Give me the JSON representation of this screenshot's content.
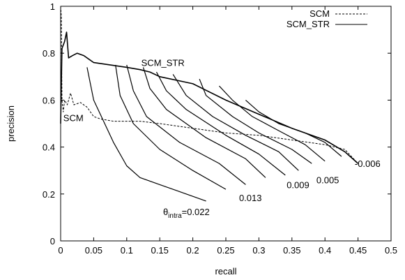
{
  "chart_data": {
    "type": "line",
    "title": "",
    "xlabel": "recall",
    "ylabel": "precision",
    "xlim": [
      0,
      0.5
    ],
    "ylim": [
      0,
      1
    ],
    "xticks": [
      "0",
      "0.05",
      "0.1",
      "0.15",
      "0.2",
      "0.25",
      "0.3",
      "0.35",
      "0.4",
      "0.45",
      "0.5"
    ],
    "yticks": [
      "0",
      "0.2",
      "0.4",
      "0.6",
      "0.8",
      "1"
    ],
    "xtick_values": [
      0,
      0.05,
      0.1,
      0.15,
      0.2,
      0.25,
      0.3,
      0.35,
      0.4,
      0.45,
      0.5
    ],
    "ytick_values": [
      0,
      0.2,
      0.4,
      0.6,
      0.8,
      1
    ],
    "grid": false,
    "legend": {
      "placement": "top-right",
      "entries": [
        {
          "label": "SCM",
          "style": "dashed"
        },
        {
          "label": "SCM_STR",
          "style": "solid"
        }
      ]
    },
    "series": [
      {
        "name": "SCM",
        "style": "dashed",
        "points": [
          [
            0,
            1.0
          ],
          [
            0.001,
            0.96
          ],
          [
            0.002,
            0.6
          ],
          [
            0.004,
            0.55
          ],
          [
            0.006,
            0.6
          ],
          [
            0.01,
            0.58
          ],
          [
            0.015,
            0.63
          ],
          [
            0.02,
            0.58
          ],
          [
            0.03,
            0.59
          ],
          [
            0.04,
            0.57
          ],
          [
            0.05,
            0.53
          ],
          [
            0.06,
            0.52
          ],
          [
            0.08,
            0.51
          ],
          [
            0.1,
            0.51
          ],
          [
            0.12,
            0.51
          ],
          [
            0.15,
            0.5
          ],
          [
            0.2,
            0.48
          ],
          [
            0.25,
            0.46
          ],
          [
            0.3,
            0.45
          ],
          [
            0.35,
            0.43
          ],
          [
            0.4,
            0.41
          ],
          [
            0.43,
            0.39
          ],
          [
            0.45,
            0.33
          ]
        ]
      },
      {
        "name": "SCM_STR",
        "style": "solid",
        "points": [
          [
            0,
            0.5
          ],
          [
            0.002,
            0.82
          ],
          [
            0.006,
            0.85
          ],
          [
            0.009,
            0.89
          ],
          [
            0.012,
            0.78
          ],
          [
            0.018,
            0.79
          ],
          [
            0.025,
            0.8
          ],
          [
            0.035,
            0.79
          ],
          [
            0.05,
            0.76
          ],
          [
            0.1,
            0.74
          ],
          [
            0.12,
            0.73
          ],
          [
            0.135,
            0.72
          ],
          [
            0.15,
            0.7
          ],
          [
            0.2,
            0.67
          ],
          [
            0.25,
            0.6
          ],
          [
            0.3,
            0.54
          ],
          [
            0.35,
            0.48
          ],
          [
            0.4,
            0.43
          ],
          [
            0.43,
            0.38
          ],
          [
            0.45,
            0.33
          ]
        ]
      },
      {
        "name": "",
        "style": "solid",
        "points": [
          [
            0.04,
            0.74
          ],
          [
            0.05,
            0.6
          ],
          [
            0.08,
            0.42
          ],
          [
            0.1,
            0.32
          ],
          [
            0.12,
            0.27
          ],
          [
            0.15,
            0.24
          ],
          [
            0.18,
            0.21
          ],
          [
            0.2,
            0.19
          ],
          [
            0.22,
            0.17
          ]
        ]
      },
      {
        "name": "",
        "style": "solid",
        "points": [
          [
            0.083,
            0.75
          ],
          [
            0.09,
            0.62
          ],
          [
            0.11,
            0.5
          ],
          [
            0.15,
            0.39
          ],
          [
            0.2,
            0.3
          ],
          [
            0.25,
            0.22
          ]
        ]
      },
      {
        "name": "",
        "style": "solid",
        "points": [
          [
            0.1,
            0.75
          ],
          [
            0.11,
            0.64
          ],
          [
            0.13,
            0.53
          ],
          [
            0.18,
            0.42
          ],
          [
            0.24,
            0.33
          ],
          [
            0.28,
            0.24
          ]
        ]
      },
      {
        "name": "",
        "style": "solid",
        "points": [
          [
            0.125,
            0.74
          ],
          [
            0.135,
            0.65
          ],
          [
            0.16,
            0.56
          ],
          [
            0.22,
            0.44
          ],
          [
            0.28,
            0.35
          ],
          [
            0.31,
            0.27
          ]
        ]
      },
      {
        "name": "",
        "style": "solid",
        "points": [
          [
            0.145,
            0.72
          ],
          [
            0.16,
            0.64
          ],
          [
            0.19,
            0.56
          ],
          [
            0.25,
            0.45
          ],
          [
            0.3,
            0.37
          ],
          [
            0.34,
            0.28
          ]
        ]
      },
      {
        "name": "",
        "style": "solid",
        "points": [
          [
            0.17,
            0.71
          ],
          [
            0.19,
            0.62
          ],
          [
            0.23,
            0.53
          ],
          [
            0.28,
            0.45
          ],
          [
            0.33,
            0.38
          ],
          [
            0.36,
            0.3
          ]
        ]
      },
      {
        "name": "",
        "style": "solid",
        "points": [
          [
            0.21,
            0.69
          ],
          [
            0.22,
            0.62
          ],
          [
            0.26,
            0.53
          ],
          [
            0.3,
            0.46
          ],
          [
            0.35,
            0.39
          ],
          [
            0.38,
            0.33
          ]
        ]
      },
      {
        "name": "",
        "style": "solid",
        "points": [
          [
            0.24,
            0.66
          ],
          [
            0.26,
            0.6
          ],
          [
            0.29,
            0.53
          ],
          [
            0.33,
            0.47
          ],
          [
            0.37,
            0.41
          ],
          [
            0.4,
            0.34
          ]
        ]
      },
      {
        "name": "",
        "style": "solid",
        "points": [
          [
            0.28,
            0.6
          ],
          [
            0.3,
            0.55
          ],
          [
            0.33,
            0.5
          ],
          [
            0.37,
            0.46
          ],
          [
            0.4,
            0.42
          ],
          [
            0.425,
            0.36
          ]
        ]
      }
    ],
    "annotations": [
      {
        "text": "SCM_STR",
        "x": 0.122,
        "y": 0.745
      },
      {
        "text": "SCM",
        "x": 0.004,
        "y": 0.51
      },
      {
        "text": "-0.006",
        "x": 0.445,
        "y": 0.315
      },
      {
        "text": "0.005",
        "x": 0.387,
        "y": 0.245
      },
      {
        "text": "0.009",
        "x": 0.342,
        "y": 0.225
      },
      {
        "text": "0.013",
        "x": 0.27,
        "y": 0.17
      },
      {
        "prefix": "θ",
        "sub": "intra",
        "text": "=0.022",
        "x": 0.155,
        "y": 0.11
      }
    ]
  }
}
